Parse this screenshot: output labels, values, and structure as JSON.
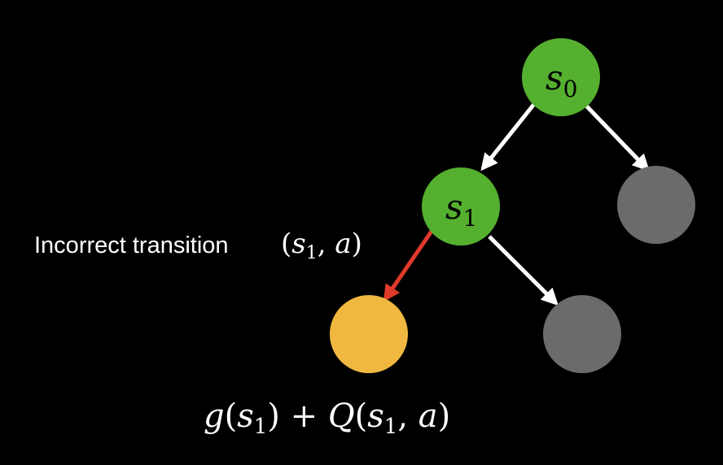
{
  "colors": {
    "background": "#000000",
    "state_node": "#55B030",
    "unexplored_node": "#6B6B6B",
    "target_node": "#F0B840",
    "edge": "#FFFFFF",
    "incorrect_edge": "#E03A2A"
  },
  "nodes": [
    {
      "id": "s0",
      "var": "s",
      "sub": "0",
      "kind": "state"
    },
    {
      "id": "s1",
      "var": "s",
      "sub": "1",
      "kind": "state"
    },
    {
      "id": "n_right_top",
      "kind": "unexplored"
    },
    {
      "id": "n_target",
      "kind": "target"
    },
    {
      "id": "n_right_bottom",
      "kind": "unexplored"
    }
  ],
  "edges": [
    {
      "from": "s0",
      "to": "s1",
      "kind": "normal"
    },
    {
      "from": "s0",
      "to": "n_right_top",
      "kind": "normal"
    },
    {
      "from": "s1",
      "to": "n_target",
      "kind": "incorrect"
    },
    {
      "from": "s1",
      "to": "n_right_bottom",
      "kind": "normal"
    }
  ],
  "annotation": {
    "text": "Incorrect transition",
    "math": {
      "open": "(",
      "var": "s",
      "sub": "1",
      "sep": ", ",
      "act": "a",
      "close": ")"
    }
  },
  "formula": {
    "g": "g",
    "open1": "(",
    "s": "s",
    "sub1": "1",
    "close1": ")",
    "plus": " + ",
    "Q": "Q",
    "open2": "(",
    "s2": "s",
    "sub2": "1",
    "sep": ", ",
    "a": "a",
    "close2": ")"
  }
}
